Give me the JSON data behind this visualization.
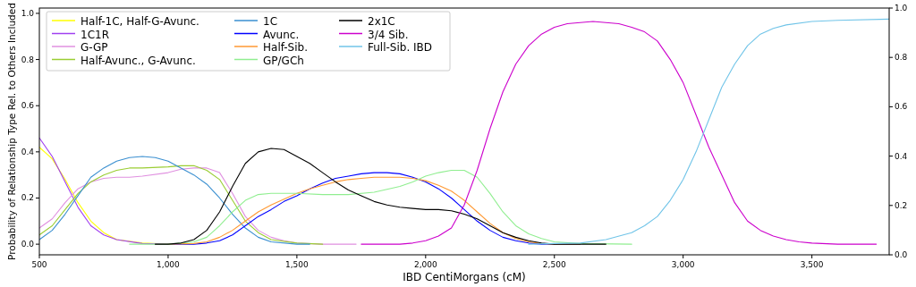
{
  "chart_data": {
    "type": "line",
    "xlabel": "IBD CentiMorgans (cM)",
    "ylabel": "Probability of Relationship Type Rel. to Others Included",
    "xlim": [
      500,
      3800
    ],
    "xticks": [
      {
        "value": 500,
        "label": "500"
      },
      {
        "value": 1000,
        "label": "1,000"
      },
      {
        "value": 1500,
        "label": "1,500"
      },
      {
        "value": 2000,
        "label": "2,000"
      },
      {
        "value": 2500,
        "label": "2,500"
      },
      {
        "value": 3000,
        "label": "3,000"
      },
      {
        "value": 3500,
        "label": "3,500"
      }
    ],
    "ylim": [
      -0.046,
      1.023
    ],
    "yticks": [
      {
        "value": 0,
        "label": "0.0"
      },
      0.2,
      0.4,
      0.6,
      0.8,
      {
        "value": 1,
        "label": "1.0"
      }
    ],
    "y2lim": [
      0,
      1
    ],
    "y2ticks": [
      {
        "value": 0,
        "label": "0.0"
      },
      0.2,
      0.4,
      0.6,
      0.8,
      {
        "value": 1,
        "label": "1.0"
      }
    ],
    "legend": "top left",
    "grid": false,
    "marker": "none",
    "line_style": "solid",
    "series": [
      {
        "name": "Half-1C, Half-G-Avunc.",
        "color": "#ffff00",
        "x": [
          500,
          550,
          600,
          650,
          700,
          750,
          800,
          900,
          1000
        ],
        "values": [
          0.42,
          0.37,
          0.28,
          0.18,
          0.1,
          0.05,
          0.02,
          0.005,
          0
        ]
      },
      {
        "name": "1C1R",
        "color": "#a040f0",
        "x": [
          500,
          550,
          600,
          650,
          700,
          750,
          800,
          900,
          1000
        ],
        "values": [
          0.46,
          0.38,
          0.27,
          0.16,
          0.08,
          0.04,
          0.02,
          0.003,
          0
        ]
      },
      {
        "name": "G-GP",
        "color": "#e090e0",
        "x": [
          500,
          550,
          600,
          650,
          700,
          750,
          800,
          850,
          900,
          1000,
          1050,
          1100,
          1150,
          1200,
          1250,
          1300,
          1350,
          1400,
          1450,
          1500,
          1600,
          1730
        ],
        "values": [
          0.07,
          0.11,
          0.18,
          0.24,
          0.27,
          0.285,
          0.29,
          0.29,
          0.295,
          0.31,
          0.325,
          0.33,
          0.33,
          0.31,
          0.22,
          0.12,
          0.06,
          0.03,
          0.015,
          0.005,
          0,
          0
        ]
      },
      {
        "name": "Half-Avunc., G-Avunc.",
        "color": "#9acd32",
        "x": [
          500,
          550,
          600,
          650,
          700,
          750,
          800,
          850,
          900,
          1000,
          1050,
          1100,
          1150,
          1200,
          1250,
          1300,
          1350,
          1400,
          1500,
          1600
        ],
        "values": [
          0.04,
          0.08,
          0.15,
          0.22,
          0.27,
          0.3,
          0.32,
          0.33,
          0.33,
          0.335,
          0.34,
          0.34,
          0.32,
          0.28,
          0.19,
          0.1,
          0.05,
          0.02,
          0.005,
          0
        ]
      },
      {
        "name": "1C",
        "color": "#3a8fd0",
        "x": [
          500,
          550,
          600,
          650,
          700,
          750,
          800,
          850,
          900,
          950,
          1000,
          1050,
          1100,
          1150,
          1200,
          1250,
          1300,
          1350,
          1400,
          1500,
          1550
        ],
        "values": [
          0.02,
          0.06,
          0.13,
          0.21,
          0.29,
          0.33,
          0.36,
          0.375,
          0.38,
          0.375,
          0.36,
          0.33,
          0.3,
          0.26,
          0.2,
          0.13,
          0.07,
          0.03,
          0.01,
          0,
          0
        ]
      },
      {
        "name": "Avunc.",
        "color": "#0000ff",
        "x": [
          1000,
          1100,
          1150,
          1200,
          1250,
          1300,
          1350,
          1400,
          1450,
          1500,
          1550,
          1600,
          1650,
          1700,
          1750,
          1800,
          1850,
          1900,
          1950,
          2000,
          2050,
          2100,
          2150,
          2200,
          2250,
          2300,
          2350,
          2400,
          2450,
          2600
        ],
        "values": [
          0,
          0,
          0.005,
          0.015,
          0.04,
          0.08,
          0.12,
          0.15,
          0.185,
          0.21,
          0.24,
          0.265,
          0.285,
          0.295,
          0.305,
          0.31,
          0.31,
          0.305,
          0.29,
          0.27,
          0.24,
          0.2,
          0.15,
          0.1,
          0.06,
          0.03,
          0.015,
          0.005,
          0,
          0
        ]
      },
      {
        "name": "Half-Sib.",
        "color": "#ff9933",
        "x": [
          1000,
          1100,
          1150,
          1200,
          1250,
          1300,
          1350,
          1400,
          1450,
          1500,
          1550,
          1600,
          1650,
          1700,
          1750,
          1800,
          1850,
          1900,
          1950,
          2000,
          2050,
          2100,
          2150,
          2200,
          2250,
          2300,
          2350,
          2400,
          2450,
          2500,
          2600
        ],
        "values": [
          0,
          0.003,
          0.01,
          0.03,
          0.06,
          0.1,
          0.14,
          0.17,
          0.195,
          0.22,
          0.24,
          0.255,
          0.27,
          0.28,
          0.285,
          0.29,
          0.29,
          0.29,
          0.285,
          0.275,
          0.255,
          0.23,
          0.19,
          0.14,
          0.09,
          0.05,
          0.025,
          0.01,
          0.003,
          0,
          0
        ]
      },
      {
        "name": "GP/GCh",
        "color": "#90ee90",
        "x": [
          850,
          1000,
          1100,
          1150,
          1200,
          1250,
          1300,
          1350,
          1400,
          1450,
          1500,
          1600,
          1700,
          1800,
          1900,
          1950,
          2000,
          2050,
          2100,
          2150,
          2200,
          2250,
          2300,
          2350,
          2400,
          2450,
          2500,
          2600,
          2800
        ],
        "values": [
          0,
          0,
          0.01,
          0.03,
          0.08,
          0.14,
          0.19,
          0.215,
          0.22,
          0.22,
          0.22,
          0.215,
          0.215,
          0.225,
          0.25,
          0.27,
          0.295,
          0.31,
          0.32,
          0.32,
          0.29,
          0.22,
          0.14,
          0.08,
          0.045,
          0.025,
          0.01,
          0.003,
          0
        ]
      },
      {
        "name": "2x1C",
        "color": "#000000",
        "x": [
          950,
          1000,
          1050,
          1100,
          1150,
          1200,
          1250,
          1300,
          1350,
          1400,
          1450,
          1500,
          1550,
          1600,
          1650,
          1700,
          1750,
          1800,
          1850,
          1900,
          1950,
          2000,
          2050,
          2100,
          2150,
          2200,
          2250,
          2300,
          2350,
          2400,
          2450,
          2500,
          2700
        ],
        "values": [
          0,
          0,
          0.005,
          0.02,
          0.06,
          0.14,
          0.25,
          0.35,
          0.4,
          0.415,
          0.41,
          0.38,
          0.35,
          0.31,
          0.27,
          0.235,
          0.21,
          0.185,
          0.17,
          0.16,
          0.155,
          0.15,
          0.15,
          0.145,
          0.13,
          0.11,
          0.08,
          0.05,
          0.03,
          0.015,
          0.005,
          0,
          0
        ]
      },
      {
        "name": "3/4 Sib.",
        "color": "#cc00cc",
        "x": [
          1750,
          1900,
          1950,
          2000,
          2050,
          2100,
          2150,
          2200,
          2250,
          2300,
          2350,
          2400,
          2450,
          2500,
          2550,
          2600,
          2650,
          2700,
          2750,
          2800,
          2850,
          2900,
          2950,
          3000,
          3050,
          3100,
          3150,
          3200,
          3250,
          3300,
          3350,
          3400,
          3450,
          3500,
          3600,
          3750
        ],
        "values": [
          0,
          0,
          0.005,
          0.015,
          0.035,
          0.07,
          0.17,
          0.32,
          0.5,
          0.66,
          0.78,
          0.86,
          0.91,
          0.94,
          0.955,
          0.96,
          0.965,
          0.96,
          0.955,
          0.94,
          0.92,
          0.88,
          0.8,
          0.7,
          0.56,
          0.42,
          0.3,
          0.18,
          0.1,
          0.06,
          0.035,
          0.02,
          0.01,
          0.005,
          0,
          0
        ]
      },
      {
        "name": "Full-Sib. IBD",
        "color": "#70c4e8",
        "x": [
          2400,
          2500,
          2600,
          2700,
          2800,
          2850,
          2900,
          2950,
          3000,
          3050,
          3100,
          3150,
          3200,
          3250,
          3300,
          3350,
          3400,
          3500,
          3600,
          3800
        ],
        "values": [
          0,
          0.003,
          0.005,
          0.02,
          0.05,
          0.08,
          0.12,
          0.19,
          0.28,
          0.4,
          0.54,
          0.68,
          0.78,
          0.86,
          0.91,
          0.935,
          0.95,
          0.965,
          0.97,
          0.975
        ]
      }
    ]
  }
}
